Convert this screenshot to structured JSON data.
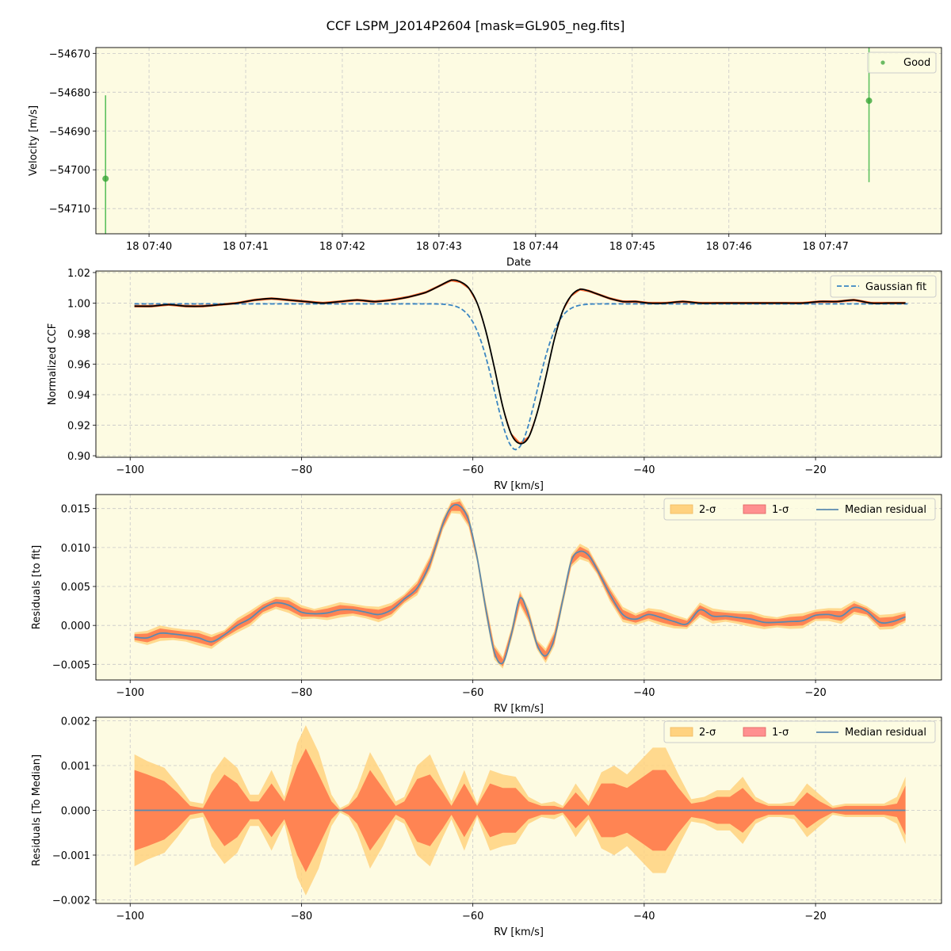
{
  "figure": {
    "title": "CCF LSPM_J2014P2604 [mask=GL905_neg.fits]"
  },
  "colors": {
    "panel_bg": "#fdfbe2",
    "grid": "#c8c8c8",
    "good": "#2ca02c",
    "good_err": "#5ec15e",
    "ccf_line": "#000000",
    "ccf_band": "#ff5a1f",
    "gauss": "#3b86c2",
    "band_2sigma": "#ffd27f",
    "band_1sigma": "#ff7f50",
    "median": "#5a8ab0"
  },
  "chart_data": [
    {
      "type": "scatter",
      "xlabel": "Date",
      "ylabel": "Velocity [m/s]",
      "xlim": [
        -0.55,
        8.2
      ],
      "ylim": [
        -54716.5,
        -54668.5
      ],
      "xticks": [
        {
          "v": 0,
          "label": "18 07:40"
        },
        {
          "v": 1,
          "label": "18 07:41"
        },
        {
          "v": 2,
          "label": "18 07:42"
        },
        {
          "v": 3,
          "label": "18 07:43"
        },
        {
          "v": 4,
          "label": "18 07:44"
        },
        {
          "v": 5,
          "label": "18 07:45"
        },
        {
          "v": 6,
          "label": "18 07:46"
        },
        {
          "v": 7,
          "label": "18 07:47"
        }
      ],
      "yticks": [
        -54710,
        -54700,
        -54690,
        -54680,
        -54670
      ],
      "ytick_labels": [
        "−54710",
        "−54700",
        "−54690",
        "−54680",
        "−54670"
      ],
      "legend": [
        {
          "name": "Good",
          "kind": "marker"
        }
      ],
      "legend_position": "upper right",
      "series": [
        {
          "name": "Good",
          "points": [
            {
              "x": -0.45,
              "y": -54702.3,
              "err": 21.5
            },
            {
              "x": 7.45,
              "y": -54682.2,
              "err": 21.0
            }
          ]
        }
      ],
      "grid": true
    },
    {
      "type": "line",
      "xlabel": "RV [km/s]",
      "ylabel": "Normalized CCF",
      "xlim": [
        -104,
        -5.3
      ],
      "ylim": [
        0.899,
        1.021
      ],
      "xticks": [
        -100,
        -80,
        -60,
        -40,
        -20
      ],
      "xtick_labels": [
        "−100",
        "−80",
        "−60",
        "−40",
        "−20"
      ],
      "yticks": [
        0.9,
        0.92,
        0.94,
        0.96,
        0.98,
        1.0,
        1.02
      ],
      "ytick_labels": [
        "0.90",
        "0.92",
        "0.94",
        "0.96",
        "0.98",
        "1.00",
        "1.02"
      ],
      "legend": [
        {
          "name": "Gaussian fit",
          "kind": "dashed"
        }
      ],
      "legend_position": "upper right",
      "x": [
        -99.5,
        -97.5,
        -95.5,
        -93.5,
        -91.5,
        -89.5,
        -87.5,
        -85.5,
        -83.5,
        -81.5,
        -79.5,
        -77.5,
        -75.5,
        -73.5,
        -71.5,
        -69.5,
        -67.5,
        -65.5,
        -64.0,
        -62.5,
        -61.5,
        -60.5,
        -59.5,
        -58.5,
        -57.5,
        -56.5,
        -55.5,
        -54.5,
        -53.5,
        -52.5,
        -51.5,
        -50.5,
        -49.5,
        -48.5,
        -47.5,
        -46.5,
        -45.5,
        -44.0,
        -42.5,
        -41.0,
        -39.5,
        -37.5,
        -35.5,
        -33.5,
        -31.5,
        -29.5,
        -27.5,
        -25.5,
        -23.5,
        -21.5,
        -19.5,
        -17.5,
        -15.5,
        -13.5,
        -11.5,
        -9.5
      ],
      "series": [
        {
          "name": "CCF",
          "values": [
            0.998,
            0.998,
            0.999,
            0.998,
            0.998,
            0.999,
            1.0,
            1.002,
            1.003,
            1.002,
            1.001,
            1.0,
            1.001,
            1.002,
            1.001,
            1.002,
            1.004,
            1.007,
            1.011,
            1.015,
            1.014,
            1.01,
            1.0,
            0.982,
            0.958,
            0.932,
            0.914,
            0.908,
            0.912,
            0.928,
            0.951,
            0.976,
            0.995,
            1.005,
            1.009,
            1.008,
            1.006,
            1.003,
            1.001,
            1.001,
            1.0,
            1.0,
            1.001,
            1.0,
            1.0,
            1.0,
            1.0,
            1.0,
            1.0,
            1.0,
            1.001,
            1.001,
            1.002,
            1.0,
            1.0,
            1.0
          ]
        },
        {
          "name": "Gaussian fit",
          "center": -55.0,
          "sigma": 2.45,
          "depth": 0.0955,
          "baseline": 0.9995
        }
      ],
      "grid": true
    },
    {
      "type": "area",
      "xlabel": "RV [km/s]",
      "ylabel": "Residuals [to fit]",
      "xlim": [
        -104,
        -5.3
      ],
      "ylim": [
        -0.007,
        0.0168
      ],
      "xticks": [
        -100,
        -80,
        -60,
        -40,
        -20
      ],
      "xtick_labels": [
        "−100",
        "−80",
        "−60",
        "−40",
        "−20"
      ],
      "yticks": [
        -0.005,
        0.0,
        0.005,
        0.01,
        0.015
      ],
      "ytick_labels": [
        "−0.005",
        "0.000",
        "0.005",
        "0.010",
        "0.015"
      ],
      "legend": [
        {
          "name": "2-σ",
          "kind": "patch2"
        },
        {
          "name": "1-σ",
          "kind": "patch1"
        },
        {
          "name": "Median residual",
          "kind": "line"
        }
      ],
      "legend_position": "upper right",
      "x": [
        -99.5,
        -98.0,
        -96.5,
        -95.0,
        -93.5,
        -92.0,
        -90.5,
        -89.0,
        -87.5,
        -86.0,
        -84.5,
        -83.0,
        -81.5,
        -80.0,
        -78.5,
        -77.0,
        -75.5,
        -74.0,
        -72.5,
        -71.0,
        -69.5,
        -68.0,
        -66.5,
        -65.0,
        -63.5,
        -62.5,
        -61.5,
        -60.5,
        -59.5,
        -58.5,
        -57.5,
        -56.5,
        -55.5,
        -54.5,
        -53.5,
        -52.5,
        -51.5,
        -50.5,
        -49.5,
        -48.5,
        -47.5,
        -46.5,
        -45.5,
        -44.0,
        -42.5,
        -41.0,
        -39.5,
        -38.0,
        -36.5,
        -35.0,
        -33.5,
        -32.0,
        -30.5,
        -29.0,
        -27.5,
        -26.0,
        -24.5,
        -23.0,
        -21.5,
        -20.0,
        -18.5,
        -17.0,
        -15.5,
        -14.0,
        -12.5,
        -11.0,
        -9.5
      ],
      "median": [
        -0.0015,
        -0.0016,
        -0.001,
        -0.0011,
        -0.0013,
        -0.0016,
        -0.0021,
        -0.0012,
        0.0,
        0.0009,
        0.0022,
        0.0029,
        0.0026,
        0.0017,
        0.0015,
        0.0016,
        0.002,
        0.002,
        0.0017,
        0.0014,
        0.002,
        0.0034,
        0.0048,
        0.008,
        0.013,
        0.0152,
        0.0153,
        0.0135,
        0.0087,
        0.0022,
        -0.0034,
        -0.0048,
        -0.0011,
        0.0035,
        0.0013,
        -0.0025,
        -0.0039,
        -0.0017,
        0.0033,
        0.0083,
        0.0095,
        0.009,
        0.0072,
        0.004,
        0.0014,
        0.0008,
        0.0014,
        0.001,
        0.0005,
        0.0002,
        0.002,
        0.0012,
        0.0012,
        0.001,
        0.0008,
        0.0004,
        0.0004,
        0.0005,
        0.0006,
        0.0013,
        0.0014,
        0.0012,
        0.0023,
        0.0018,
        0.0004,
        0.0005,
        0.0011
      ],
      "grid": true
    },
    {
      "type": "area",
      "xlabel": "RV [km/s]",
      "ylabel": "Residuals [To Median]",
      "xlim": [
        -104,
        -5.3
      ],
      "ylim": [
        -0.00208,
        0.00208
      ],
      "xticks": [
        -100,
        -80,
        -60,
        -40,
        -20
      ],
      "xtick_labels": [
        "−100",
        "−80",
        "−60",
        "−40",
        "−20"
      ],
      "yticks": [
        -0.002,
        -0.001,
        0.0,
        0.001,
        0.002
      ],
      "ytick_labels": [
        "−0.002",
        "−0.001",
        "0.000",
        "0.001",
        "0.002"
      ],
      "legend": [
        {
          "name": "2-σ",
          "kind": "patch2"
        },
        {
          "name": "1-σ",
          "kind": "patch1"
        },
        {
          "name": "Median residual",
          "kind": "line"
        }
      ],
      "legend_position": "upper right",
      "x": [
        -99.5,
        -98.0,
        -96.0,
        -94.5,
        -93.0,
        -91.5,
        -90.5,
        -89.0,
        -87.5,
        -86.0,
        -85.0,
        -83.5,
        -82.0,
        -80.5,
        -79.5,
        -78.0,
        -76.5,
        -75.5,
        -74.5,
        -73.5,
        -72.0,
        -70.5,
        -69.0,
        -68.0,
        -66.5,
        -65.0,
        -63.5,
        -62.5,
        -61.0,
        -59.5,
        -58.0,
        -56.5,
        -55.0,
        -53.5,
        -52.0,
        -50.5,
        -49.5,
        -48.0,
        -46.5,
        -45.0,
        -43.5,
        -42.0,
        -40.5,
        -39.0,
        -37.5,
        -36.0,
        -34.5,
        -33.0,
        -31.5,
        -30.0,
        -28.5,
        -27.0,
        -25.5,
        -24.0,
        -22.5,
        -21.0,
        -19.5,
        -18.0,
        -16.5,
        -15.0,
        -13.5,
        -12.0,
        -10.5,
        -9.5
      ],
      "sigma1": [
        0.0009,
        0.0008,
        0.00065,
        0.0004,
        0.0001,
        5e-05,
        0.0004,
        0.0008,
        0.0006,
        0.0002,
        0.0002,
        0.0006,
        0.0002,
        0.001,
        0.00138,
        0.0008,
        0.0002,
        0.0,
        0.0001,
        0.0003,
        0.0009,
        0.0005,
        0.0001,
        0.0002,
        0.0007,
        0.0008,
        0.0004,
        0.0001,
        0.0006,
        0.0001,
        0.0006,
        0.0005,
        0.0005,
        0.0002,
        0.0001,
        0.0001,
        5e-05,
        0.0004,
        0.0001,
        0.0006,
        0.0006,
        0.0005,
        0.0007,
        0.0009,
        0.0009,
        0.0005,
        0.00015,
        0.0002,
        0.0003,
        0.0003,
        0.0005,
        0.0002,
        0.0001,
        0.0001,
        0.0001,
        0.0004,
        0.0002,
        5e-05,
        0.0001,
        0.0001,
        0.0001,
        0.0001,
        0.00015,
        0.00055
      ],
      "sigma2": [
        0.00125,
        0.0011,
        0.00095,
        0.0006,
        0.0002,
        0.00015,
        0.0008,
        0.0012,
        0.00095,
        0.00035,
        0.00035,
        0.0009,
        0.0003,
        0.0015,
        0.0019,
        0.0013,
        0.00035,
        5e-05,
        0.00015,
        0.0005,
        0.0013,
        0.0008,
        0.0002,
        0.0003,
        0.001,
        0.00125,
        0.0006,
        0.0002,
        0.0009,
        0.00015,
        0.0009,
        0.0008,
        0.00075,
        0.0003,
        0.00015,
        0.0002,
        0.0001,
        0.0006,
        0.0002,
        0.00085,
        0.001,
        0.0008,
        0.0011,
        0.0014,
        0.0014,
        0.0008,
        0.00025,
        0.0003,
        0.00045,
        0.00045,
        0.00075,
        0.0003,
        0.00015,
        0.00015,
        0.0002,
        0.0006,
        0.00035,
        0.0001,
        0.00015,
        0.00015,
        0.00015,
        0.00015,
        0.0003,
        0.00075
      ],
      "grid": true
    }
  ]
}
